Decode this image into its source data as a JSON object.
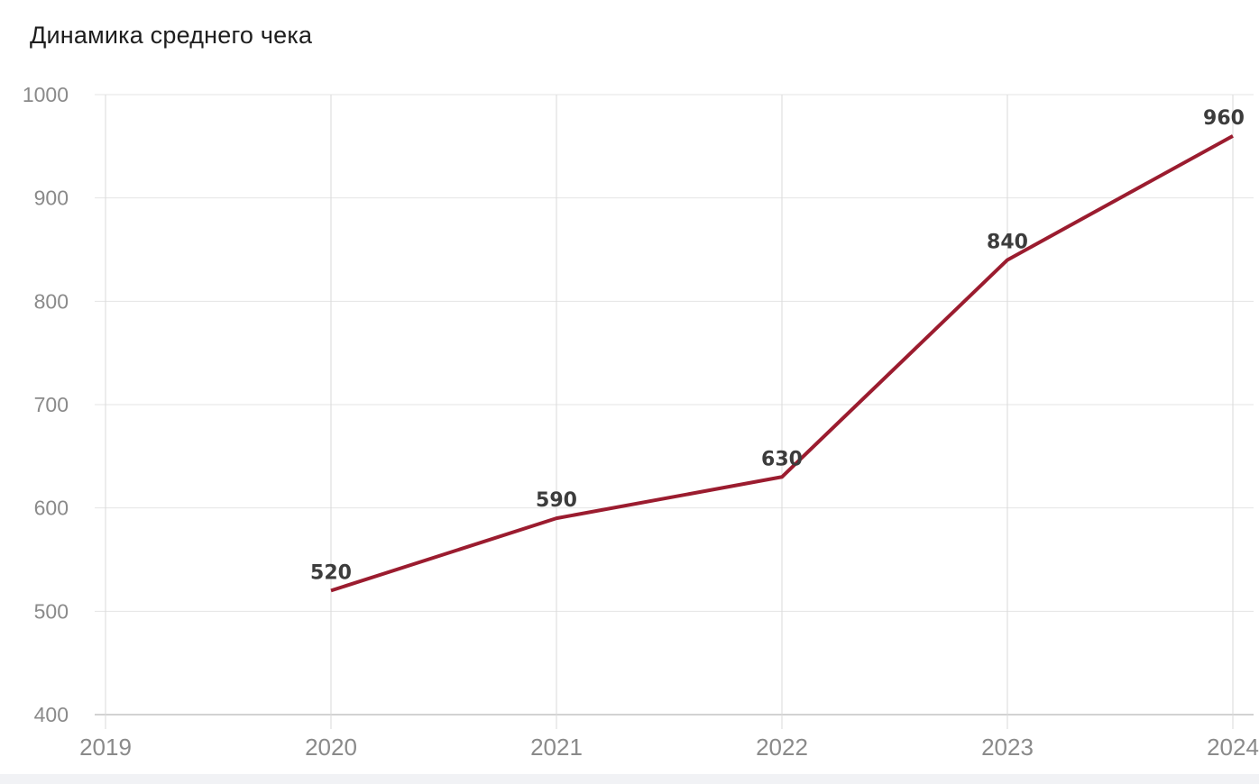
{
  "chart_data": {
    "type": "line",
    "title": "Динамика среднего чека",
    "x": [
      2020,
      2021,
      2022,
      2023,
      2024
    ],
    "values": [
      520,
      590,
      630,
      840,
      960
    ],
    "data_labels": [
      "520",
      "590",
      "630",
      "840",
      "960"
    ],
    "x_ticks": [
      "2019",
      "2020",
      "2021",
      "2022",
      "2023",
      "2024"
    ],
    "y_ticks": [
      400,
      500,
      600,
      700,
      800,
      900,
      1000
    ],
    "xlim": [
      2019,
      2024
    ],
    "ylim": [
      400,
      1000
    ],
    "grid": "on",
    "legend": "none",
    "colors": {
      "line": "#9b1c2f",
      "title_text": "#1e1e1e",
      "tick_text": "#8a8a8a",
      "data_label_text": "#3c3c3c",
      "grid_horizontal": "#e4e4e4",
      "grid_vertical": "#dadada",
      "axis_baseline": "#c3c3c3",
      "footer_strip": "#f1f2f5",
      "background": "#ffffff"
    }
  }
}
